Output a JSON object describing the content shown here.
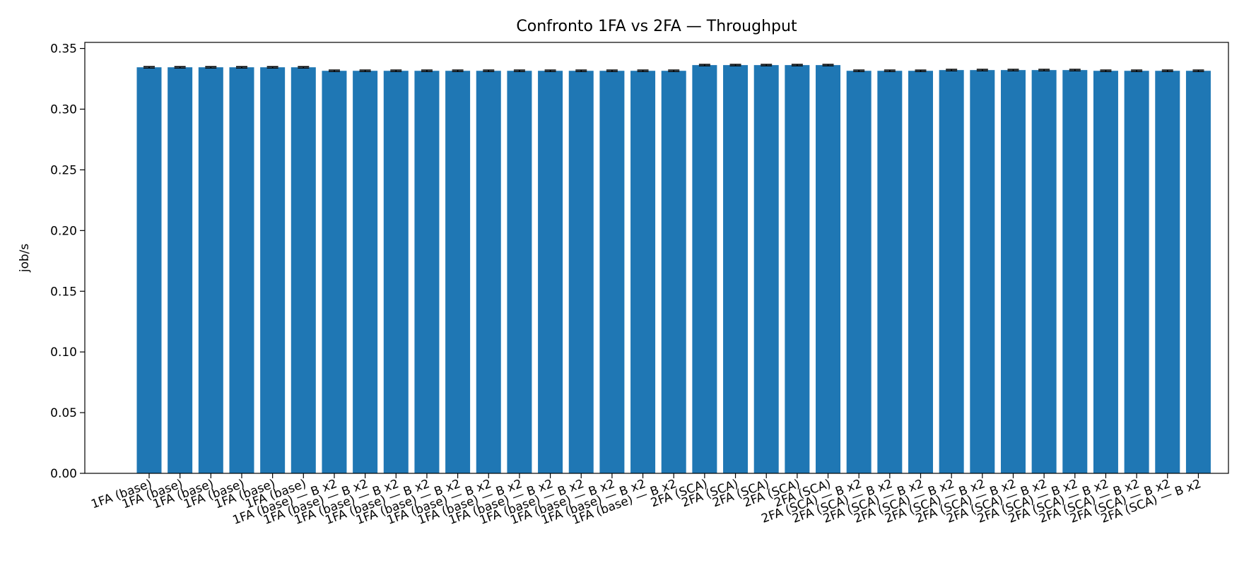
{
  "chart_data": {
    "type": "bar",
    "title": "Confronto 1FA vs 2FA — Throughput",
    "xlabel": "",
    "ylabel": "job/s",
    "ylim": [
      0,
      0.355
    ],
    "yticks": [
      "0.00",
      "0.05",
      "0.10",
      "0.15",
      "0.20",
      "0.25",
      "0.30",
      "0.35"
    ],
    "grid": false,
    "legend": "none",
    "bar_color": "#1f77b4",
    "errorbar_color": "#000000",
    "categories": [
      "1FA (base)",
      "1FA (base)",
      "1FA (base)",
      "1FA (base)",
      "1FA (base)",
      "1FA (base)",
      "1FA (base) — B x2",
      "1FA (base) — B x2",
      "1FA (base) — B x2",
      "1FA (base) — B x2",
      "1FA (base) — B x2",
      "1FA (base) — B x2",
      "1FA (base) — B x2",
      "1FA (base) — B x2",
      "1FA (base) — B x2",
      "1FA (base) — B x2",
      "1FA (base) — B x2",
      "1FA (base) — B x2",
      "2FA (SCA)",
      "2FA (SCA)",
      "2FA (SCA)",
      "2FA (SCA)",
      "2FA (SCA)",
      "2FA (SCA) — B x2",
      "2FA (SCA) — B x2",
      "2FA (SCA) — B x2",
      "2FA (SCA) — B x2",
      "2FA (SCA) — B x2",
      "2FA (SCA) — B x2",
      "2FA (SCA) — B x2",
      "2FA (SCA) — B x2",
      "2FA (SCA) — B x2",
      "2FA (SCA) — B x2",
      "2FA (SCA) — B x2",
      "2FA (SCA) — B x2"
    ],
    "values": [
      0.3345,
      0.3345,
      0.3345,
      0.3345,
      0.3345,
      0.3345,
      0.3316,
      0.3316,
      0.3316,
      0.3316,
      0.3316,
      0.3316,
      0.3316,
      0.3316,
      0.3316,
      0.3316,
      0.3316,
      0.3316,
      0.3363,
      0.3363,
      0.3363,
      0.3363,
      0.3363,
      0.3316,
      0.3316,
      0.3316,
      0.3322,
      0.3322,
      0.3322,
      0.3322,
      0.3322,
      0.3316,
      0.3316,
      0.3316,
      0.3316
    ],
    "errors": [
      0.0006,
      0.0006,
      0.0006,
      0.0006,
      0.0006,
      0.0006,
      0.0006,
      0.0006,
      0.0006,
      0.0006,
      0.0006,
      0.0006,
      0.0006,
      0.0006,
      0.0006,
      0.0006,
      0.0006,
      0.0006,
      0.0006,
      0.0006,
      0.0006,
      0.0006,
      0.0006,
      0.0006,
      0.0006,
      0.0006,
      0.0006,
      0.0006,
      0.0006,
      0.0006,
      0.0006,
      0.0006,
      0.0006,
      0.0006,
      0.0006
    ]
  }
}
